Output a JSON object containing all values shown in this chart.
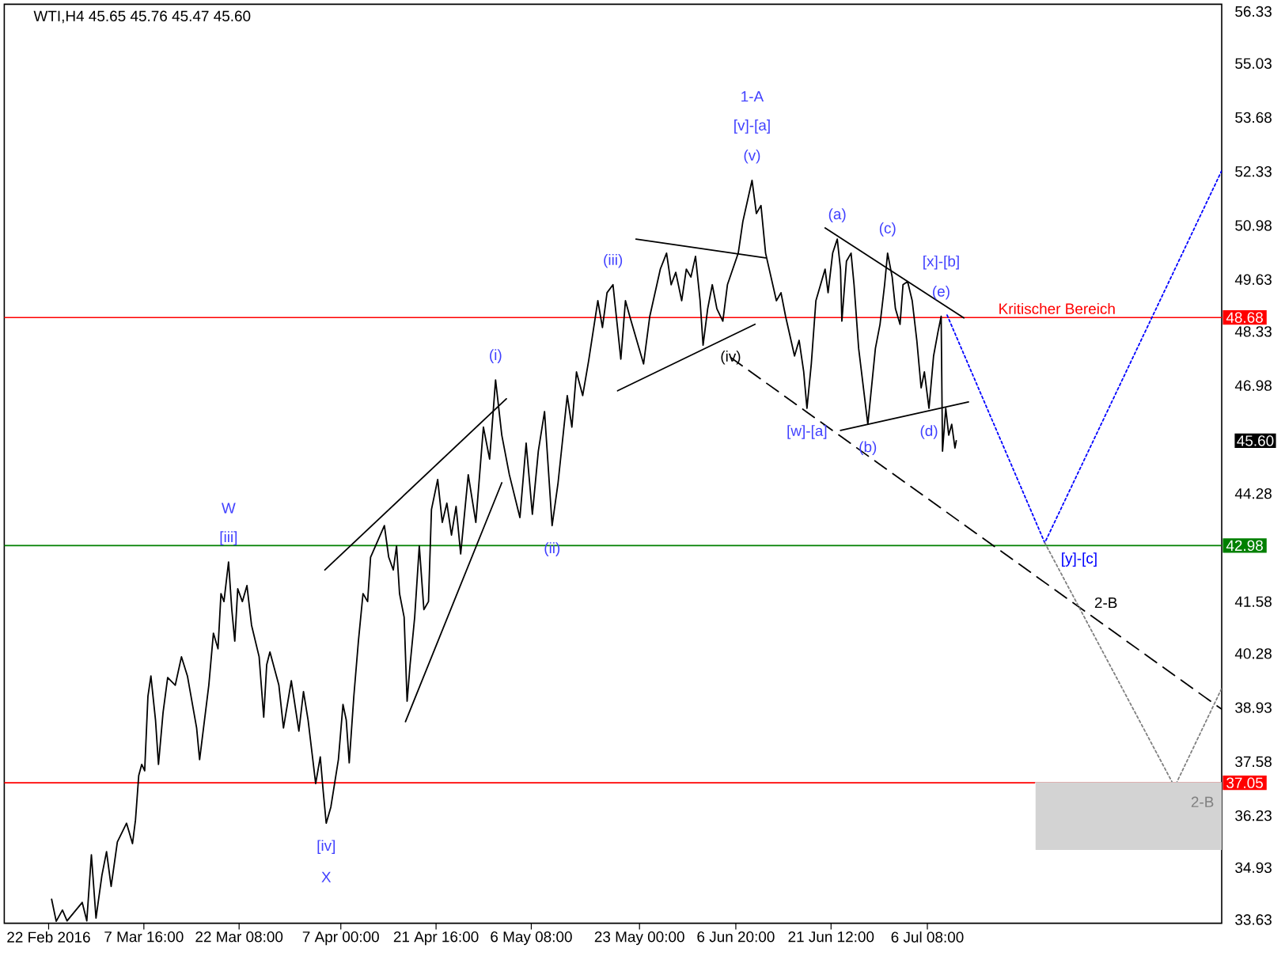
{
  "chart_data": {
    "type": "line",
    "title": "WTI,H4 45.65 45.76 45.47 45.60",
    "xlim": [
      "2016-02-15T04:00",
      "2016-08-20T16:00"
    ],
    "ylim": [
      33.54,
      56.51
    ],
    "xticks": [
      {
        "value": "2016-02-22T00:00",
        "label": "22 Feb 2016"
      },
      {
        "value": "2016-03-07T16:00",
        "label": "7 Mar 16:00"
      },
      {
        "value": "2016-03-22T08:00",
        "label": "22 Mar 08:00"
      },
      {
        "value": "2016-04-07T00:00",
        "label": "7 Apr 00:00"
      },
      {
        "value": "2016-04-21T16:00",
        "label": "21 Apr 16:00"
      },
      {
        "value": "2016-05-06T08:00",
        "label": "6 May 08:00"
      },
      {
        "value": "2016-05-23T00:00",
        "label": "23 May 00:00"
      },
      {
        "value": "2016-06-06T20:00",
        "label": "6 Jun 20:00"
      },
      {
        "value": "2016-06-21T12:00",
        "label": "21 Jun 12:00"
      },
      {
        "value": "2016-07-06T08:00",
        "label": "6 Jul 08:00"
      }
    ],
    "yticks": [
      33.63,
      34.93,
      36.23,
      37.58,
      38.93,
      40.28,
      41.58,
      44.28,
      {
        "value": 45.6,
        "label": "45.60"
      },
      46.98,
      48.33,
      49.63,
      50.98,
      52.33,
      53.68,
      55.03,
      56.33
    ],
    "series": [
      {
        "color": "#000000",
        "x": [
          "2016-02-22T11:00",
          "2016-02-23T04:00",
          "2016-02-24T03:00",
          "2016-02-24T20:00",
          "2016-02-27T04:00",
          "2016-02-27T21:00",
          "2016-02-28T14:00",
          "2016-02-29T07:00",
          "2016-03-01T05:00",
          "2016-03-01T22:00",
          "2016-03-02T15:00",
          "2016-03-03T14:00",
          "2016-03-05T00:00",
          "2016-03-05T22:00",
          "2016-03-06T09:00",
          "2016-03-06T21:00",
          "2016-03-07T08:00",
          "2016-03-07T19:00",
          "2016-03-08T07:00",
          "2016-03-08T18:00",
          "2016-03-09T11:00",
          "2016-03-09T22:00",
          "2016-03-10T15:00",
          "2016-03-11T08:00",
          "2016-03-12T12:00",
          "2016-03-13T11:00",
          "2016-03-14T09:00",
          "2016-03-15T19:00",
          "2016-03-16T06:00",
          "2016-03-17T16:00",
          "2016-03-18T09:00",
          "2016-03-19T02:00",
          "2016-03-19T13:00",
          "2016-03-20T00:00",
          "2016-03-20T17:00",
          "2016-03-21T05:00",
          "2016-03-21T16:00",
          "2016-03-22T03:00",
          "2016-03-22T20:00",
          "2016-03-23T13:00",
          "2016-03-24T06:00",
          "2016-03-25T10:00",
          "2016-03-26T03:00",
          "2016-03-26T14:00",
          "2016-03-27T02:00",
          "2016-03-28T11:00",
          "2016-03-29T04:00",
          "2016-03-30T09:00",
          "2016-03-31T13:00",
          "2016-04-01T06:00",
          "2016-04-01T23:00",
          "2016-04-03T03:00",
          "2016-04-03T20:00",
          "2016-04-04T07:00",
          "2016-04-04T18:00",
          "2016-04-05T11:00",
          "2016-04-06T15:00",
          "2016-04-07T08:00",
          "2016-04-07T20:00",
          "2016-04-08T07:00",
          "2016-04-09T00:00",
          "2016-04-09T17:00",
          "2016-04-10T10:00",
          "2016-04-11T03:00",
          "2016-04-11T14:00",
          "2016-04-13T17:00",
          "2016-04-14T09:00",
          "2016-04-15T02:00",
          "2016-04-15T14:00",
          "2016-04-16T01:00",
          "2016-04-16T18:00",
          "2016-04-17T05:00",
          "2016-04-17T16:00",
          "2016-04-18T09:00",
          "2016-04-19T02:00",
          "2016-04-19T19:00",
          "2016-04-20T12:00",
          "2016-04-20T23:00",
          "2016-04-21T22:00",
          "2016-04-22T15:00",
          "2016-04-23T08:00",
          "2016-04-24T01:00",
          "2016-04-24T18:00",
          "2016-04-25T11:00",
          "2016-04-26T15:00",
          "2016-04-27T19:00",
          "2016-04-28T23:00",
          "2016-04-29T22:00",
          "2016-04-30T20:00",
          "2016-05-01T19:00",
          "2016-05-02T23:00",
          "2016-05-04T14:00",
          "2016-05-05T13:00",
          "2016-05-06T12:00",
          "2016-05-07T10:00",
          "2016-05-08T09:00",
          "2016-05-09T13:00",
          "2016-05-10T11:00",
          "2016-05-11T21:00",
          "2016-05-12T14:00",
          "2016-05-13T07:00",
          "2016-05-14T06:00",
          "2016-05-15T04:00",
          "2016-05-16T14:00",
          "2016-05-17T07:00",
          "2016-05-18T00:00",
          "2016-05-18T22:00",
          "2016-05-20T03:00",
          "2016-05-20T20:00",
          "2016-05-21T12:00",
          "2016-05-23T15:00",
          "2016-05-24T14:00",
          "2016-05-26T05:00",
          "2016-05-27T04:00",
          "2016-05-27T21:00",
          "2016-05-28T14:00",
          "2016-05-29T12:00",
          "2016-05-30T05:00",
          "2016-05-30T22:00",
          "2016-05-31T15:00",
          "2016-06-01T08:00",
          "2016-06-01T19:00",
          "2016-06-02T12:00",
          "2016-06-03T05:00",
          "2016-06-03T22:00",
          "2016-06-04T20:00",
          "2016-06-05T13:00",
          "2016-06-07T05:00",
          "2016-06-07T22:00",
          "2016-06-09T08:00",
          "2016-06-10T00:00",
          "2016-06-10T17:00",
          "2016-06-11T10:00",
          "2016-06-13T02:00",
          "2016-06-13T19:00",
          "2016-06-14T12:00",
          "2016-06-15T21:00",
          "2016-06-16T14:00",
          "2016-06-17T07:00",
          "2016-06-17T19:00",
          "2016-06-18T11:00",
          "2016-06-19T04:00",
          "2016-06-20T14:00",
          "2016-06-21T01:00",
          "2016-06-21T18:00",
          "2016-06-22T11:00",
          "2016-06-22T23:00",
          "2016-06-23T04:00",
          "2016-06-23T21:00",
          "2016-06-24T14:00",
          "2016-06-25T01:00",
          "2016-06-25T18:00",
          "2016-06-27T04:00",
          "2016-06-28T08:00",
          "2016-06-29T01:00",
          "2016-06-29T18:00",
          "2016-06-30T05:00",
          "2016-06-30T22:00",
          "2016-07-01T10:00",
          "2016-07-02T03:00",
          "2016-07-02T14:00",
          "2016-07-03T07:00",
          "2016-07-04T00:00",
          "2016-07-04T17:00",
          "2016-07-05T09:00",
          "2016-07-05T21:00",
          "2016-07-06T14:00",
          "2016-07-07T07:00",
          "2016-07-07T23:00",
          "2016-07-08T11:00",
          "2016-07-08T16:00",
          "2016-07-09T04:00",
          "2016-07-09T15:00",
          "2016-07-10T02:00",
          "2016-07-10T14:00",
          "2016-07-10T19:00"
        ],
        "values": [
          34.14,
          33.59,
          33.87,
          33.6,
          34.06,
          33.6,
          35.25,
          33.67,
          34.74,
          35.33,
          34.46,
          35.57,
          36.04,
          35.53,
          36.12,
          37.23,
          37.51,
          37.35,
          39.21,
          39.72,
          38.62,
          37.51,
          38.81,
          39.68,
          39.49,
          40.2,
          39.72,
          38.42,
          37.63,
          39.49,
          40.79,
          40.4,
          41.78,
          41.58,
          42.57,
          41.38,
          40.59,
          41.9,
          41.58,
          41.98,
          40.99,
          40.2,
          38.69,
          40.0,
          40.32,
          39.49,
          38.42,
          39.6,
          38.34,
          39.33,
          38.62,
          37.03,
          37.7,
          36.83,
          36.04,
          36.44,
          37.63,
          39.01,
          38.62,
          37.55,
          39.21,
          40.59,
          41.78,
          41.58,
          42.69,
          43.48,
          42.69,
          42.37,
          42.97,
          41.78,
          41.19,
          39.09,
          40.0,
          41.19,
          42.97,
          41.38,
          41.58,
          43.88,
          44.63,
          43.56,
          44.04,
          43.24,
          43.96,
          42.77,
          44.75,
          43.56,
          45.94,
          45.14,
          47.12,
          45.74,
          44.75,
          43.68,
          45.54,
          43.76,
          45.34,
          46.33,
          43.48,
          44.55,
          46.73,
          45.94,
          47.32,
          46.73,
          47.6,
          49.1,
          48.43,
          49.3,
          49.5,
          47.64,
          49.1,
          48.71,
          47.52,
          48.71,
          49.89,
          50.29,
          49.5,
          49.81,
          49.1,
          49.89,
          49.69,
          50.21,
          49.1,
          47.99,
          48.9,
          49.5,
          48.9,
          48.59,
          49.5,
          50.29,
          51.08,
          52.11,
          51.28,
          51.48,
          50.29,
          49.1,
          49.3,
          48.71,
          47.72,
          48.11,
          47.32,
          46.41,
          47.52,
          49.1,
          49.89,
          49.3,
          50.29,
          50.64,
          49.89,
          48.59,
          50.09,
          50.29,
          49.5,
          47.91,
          46.01,
          47.91,
          48.51,
          49.5,
          50.29,
          49.69,
          48.9,
          48.51,
          49.5,
          49.58,
          49.1,
          48.11,
          46.92,
          47.32,
          46.41,
          47.72,
          48.31,
          48.71,
          45.34,
          46.41,
          45.74,
          46.01,
          45.42,
          45.6
        ]
      },
      {
        "color": "#000000",
        "line_style": "solid",
        "x": [
          "2016-04-04T13:00",
          "2016-05-02T12:00"
        ],
        "values": [
          42.37,
          46.65
        ]
      },
      {
        "color": "#000000",
        "line_style": "solid",
        "x": [
          "2016-04-16T23:00",
          "2016-05-01T19:00"
        ],
        "values": [
          38.58,
          44.55
        ]
      },
      {
        "color": "#000000",
        "line_style": "solid",
        "x": [
          "2016-05-22T11:00",
          "2016-06-11T10:00"
        ],
        "values": [
          50.64,
          50.17
        ]
      },
      {
        "color": "#000000",
        "line_style": "solid",
        "x": [
          "2016-05-19T15:00",
          "2016-06-09T19:00"
        ],
        "values": [
          46.85,
          48.51
        ]
      },
      {
        "color": "#000000",
        "line_style": "solid",
        "x": [
          "2016-06-20T14:00",
          "2016-07-11T23:00"
        ],
        "values": [
          50.92,
          48.67
        ]
      },
      {
        "color": "#000000",
        "line_style": "solid",
        "x": [
          "2016-06-22T23:00",
          "2016-07-12T16:00"
        ],
        "values": [
          45.86,
          46.57
        ]
      },
      {
        "color": "#000000",
        "line_style": "dashed",
        "x": [
          "2016-06-06T01:00",
          "2016-08-20T16:00"
        ],
        "values": [
          47.68,
          38.89
        ]
      },
      {
        "color": "#0000ff",
        "line_style": "dotted",
        "x": [
          "2016-07-09T09:00",
          "2016-07-24T10:00",
          "2016-08-20T16:00"
        ],
        "values": [
          48.74,
          43.05,
          52.35
        ]
      },
      {
        "color": "#808080",
        "line_style": "dotted",
        "x": [
          "2016-07-24T10:00",
          "2016-08-13T10:00",
          "2016-08-20T16:00"
        ],
        "values": [
          43.05,
          36.95,
          39.41
        ]
      },
      {
        "color": "#d3d3d3",
        "x": [
          "2016-07-23T00:00",
          "2016-08-20T16:00"
        ],
        "values": [
          37.05,
          37.05
        ],
        "lower": [
          35.37,
          35.37
        ],
        "upper": [
          37.05,
          37.05
        ]
      }
    ],
    "ref_lines": [
      {
        "axis": "y",
        "value": 48.68,
        "label": "48.68",
        "color": "#ff0000"
      },
      {
        "axis": "y",
        "value": 42.98,
        "label": "42.98",
        "color": "#008000"
      },
      {
        "axis": "y",
        "value": 37.05,
        "label": "37.05",
        "color": "#ff0000"
      }
    ],
    "annotations": [
      "1-A",
      "[v]-[a]",
      {
        "text": "(v)",
        "x": "2016-06-09T08:00",
        "y": 52.11
      },
      {
        "text": "(iii)",
        "x": "2016-05-18T22:00",
        "y": 49.5
      },
      {
        "text": "(i)",
        "x": "2016-04-30T20:00",
        "y": 47.12
      },
      {
        "text": "(ii)",
        "x": "2016-05-09T13:00",
        "y": 43.48
      },
      {
        "text": "(iv)",
        "x": "2016-06-06T01:00",
        "y": 47.68
      },
      {
        "text": "[w]-[a]",
        "x": "2016-06-17T19:00",
        "y": 46.41
      },
      {
        "text": "(a)",
        "x": "2016-06-22T11:00",
        "y": 50.64
      },
      {
        "text": "(b)",
        "x": "2016-06-27T04:00",
        "y": 46.01
      },
      {
        "text": "(c)",
        "x": "2016-06-30T05:00",
        "y": 50.29
      },
      {
        "text": "(d)",
        "x": "2016-07-06T14:00",
        "y": 46.41
      },
      "[x]-[b]",
      {
        "text": "(e)",
        "x": "2016-07-08T11:00",
        "y": 48.71
      },
      {
        "text": "Kritischer Bereich",
        "x": "2016-07-26T07:00",
        "y": 48.68
      },
      {
        "text": "[y]-[c]",
        "x": "2016-07-24T10:00",
        "y": 43.05
      },
      {
        "text": "2-B",
        "x": "2016-08-02T20:00",
        "y": 40.96
      },
      {
        "text": "2-B",
        "x": "2016-08-13T10:00",
        "y": 36.95
      },
      "W",
      {
        "text": "[iii]",
        "x": "2016-03-20T17:00",
        "y": 42.57
      },
      {
        "text": "[iv]",
        "x": "2016-04-04T18:00",
        "y": 36.04
      },
      "X"
    ]
  }
}
